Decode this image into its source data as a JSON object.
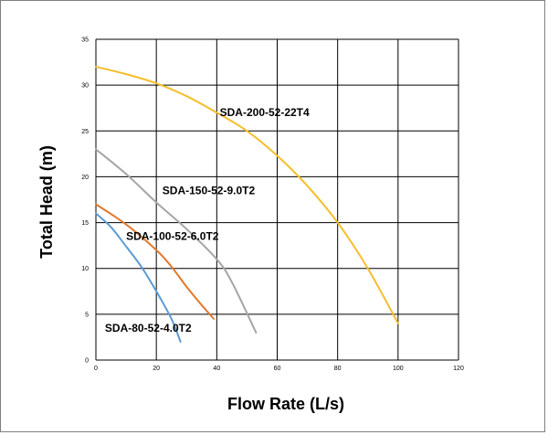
{
  "chart_data": {
    "type": "line",
    "xlabel": "Flow Rate (L/s)",
    "ylabel": "Total Head (m)",
    "xlim": [
      0,
      120
    ],
    "ylim": [
      0,
      35
    ],
    "xticks": [
      "0",
      "20",
      "40",
      "60",
      "80",
      "100",
      "120"
    ],
    "yticks": [
      "0",
      "5",
      "10",
      "15",
      "20",
      "25",
      "30",
      "35"
    ],
    "grid": true,
    "series": [
      {
        "name": "SDA-200-52-22T4",
        "color": "#f5be2b",
        "x": [
          0,
          10,
          20,
          30,
          40,
          50,
          60,
          70,
          80,
          90,
          100
        ],
        "y": [
          32,
          31.2,
          30.2,
          28.8,
          27,
          25,
          22.3,
          19,
          15,
          10,
          4
        ]
      },
      {
        "name": "SDA-150-52-9.0T2",
        "color": "#a5a5a5",
        "x": [
          0,
          10,
          20,
          30,
          40,
          45,
          53
        ],
        "y": [
          23,
          20.3,
          17.2,
          14.3,
          11,
          8.5,
          3
        ]
      },
      {
        "name": "SDA-100-52-6.0T2",
        "color": "#e07a2f",
        "x": [
          0,
          10,
          20,
          25,
          30,
          35,
          39
        ],
        "y": [
          17,
          14.8,
          12,
          10.2,
          8,
          6,
          4.5
        ]
      },
      {
        "name": "SDA-80-52-4.0T2",
        "color": "#5b9bd5",
        "x": [
          0,
          5,
          10,
          15,
          20,
          25,
          28
        ],
        "y": [
          16,
          14.5,
          12.4,
          10.2,
          7.5,
          4.5,
          2
        ]
      }
    ]
  }
}
